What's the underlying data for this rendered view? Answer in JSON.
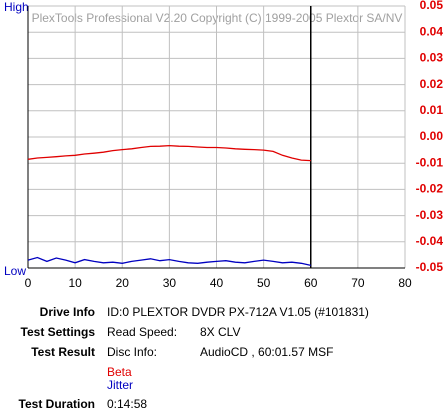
{
  "chart_data": {
    "type": "line",
    "watermark": "PlexTools Professional V2.20 Copyright (C) 1999-2005 Plextor SA/NV",
    "high_label": "High",
    "low_label": "Low",
    "xlim": [
      0,
      80
    ],
    "xticks": [
      0,
      10,
      20,
      30,
      40,
      50,
      60,
      70,
      80
    ],
    "ylim": [
      -0.05,
      0.05
    ],
    "yticks": [
      0.05,
      0.04,
      0.03,
      0.02,
      0.01,
      {
        "value": 0,
        "label": "0.00"
      },
      -0.01,
      -0.02,
      -0.03,
      -0.04,
      -0.05
    ],
    "grid": true,
    "vline_x": 60,
    "series": [
      {
        "name": "Beta",
        "color": "#e00000",
        "x": [
          0,
          2,
          4,
          6,
          8,
          10,
          12,
          14,
          16,
          18,
          20,
          22,
          24,
          26,
          28,
          30,
          32,
          34,
          36,
          38,
          40,
          42,
          44,
          46,
          48,
          50,
          52,
          54,
          56,
          58,
          60
        ],
        "values": [
          -0.0085,
          -0.008,
          -0.0078,
          -0.0075,
          -0.0072,
          -0.007,
          -0.0065,
          -0.0062,
          -0.0058,
          -0.0052,
          -0.0048,
          -0.0045,
          -0.004,
          -0.0036,
          -0.0035,
          -0.0033,
          -0.0035,
          -0.0036,
          -0.0038,
          -0.004,
          -0.004,
          -0.0042,
          -0.0045,
          -0.0047,
          -0.0048,
          -0.005,
          -0.0055,
          -0.007,
          -0.008,
          -0.0088,
          -0.009
        ]
      },
      {
        "name": "Jitter",
        "color": "#0000c0",
        "x": [
          0,
          2,
          4,
          6,
          8,
          10,
          12,
          14,
          16,
          18,
          20,
          22,
          24,
          26,
          28,
          30,
          32,
          34,
          36,
          38,
          40,
          42,
          44,
          46,
          48,
          50,
          52,
          54,
          56,
          58,
          60
        ],
        "values": [
          -0.047,
          -0.046,
          -0.0475,
          -0.0462,
          -0.047,
          -0.048,
          -0.0468,
          -0.0475,
          -0.048,
          -0.0478,
          -0.0482,
          -0.0475,
          -0.047,
          -0.0465,
          -0.0472,
          -0.0468,
          -0.0475,
          -0.048,
          -0.0482,
          -0.0478,
          -0.0475,
          -0.0472,
          -0.0478,
          -0.048,
          -0.0475,
          -0.047,
          -0.0475,
          -0.048,
          -0.0478,
          -0.0482,
          -0.049
        ]
      }
    ]
  },
  "info": {
    "drive_label": "Drive Info",
    "drive_value": "ID:0 PLEXTOR DVDR PX-712A V1.05 (#101831)",
    "settings_label": "Test Settings",
    "settings_key": "Read Speed:",
    "settings_value": "8X CLV",
    "result_label": "Test Result",
    "result_key": "Disc Info:",
    "result_value": "AudioCD , 60:01.57 MSF",
    "duration_label": "Test Duration",
    "duration_value": "0:14:58"
  }
}
